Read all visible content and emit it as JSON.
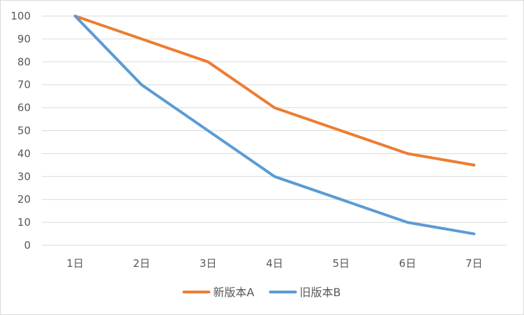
{
  "chart_data": {
    "type": "line",
    "categories": [
      "1日",
      "2日",
      "3日",
      "4日",
      "5日",
      "6日",
      "7日"
    ],
    "series": [
      {
        "name": "新版本A",
        "color": "#ed7d31",
        "values": [
          100,
          90,
          80,
          60,
          50,
          40,
          35
        ]
      },
      {
        "name": "旧版本B",
        "color": "#5b9bd5",
        "values": [
          100,
          70,
          50,
          30,
          20,
          10,
          5
        ]
      }
    ],
    "y_ticks": [
      "0",
      "10",
      "20",
      "30",
      "40",
      "50",
      "60",
      "70",
      "80",
      "90",
      "100"
    ],
    "ylim": [
      0,
      100
    ],
    "grid": true,
    "legend_position": "bottom",
    "title": "",
    "xlabel": "",
    "ylabel": ""
  }
}
